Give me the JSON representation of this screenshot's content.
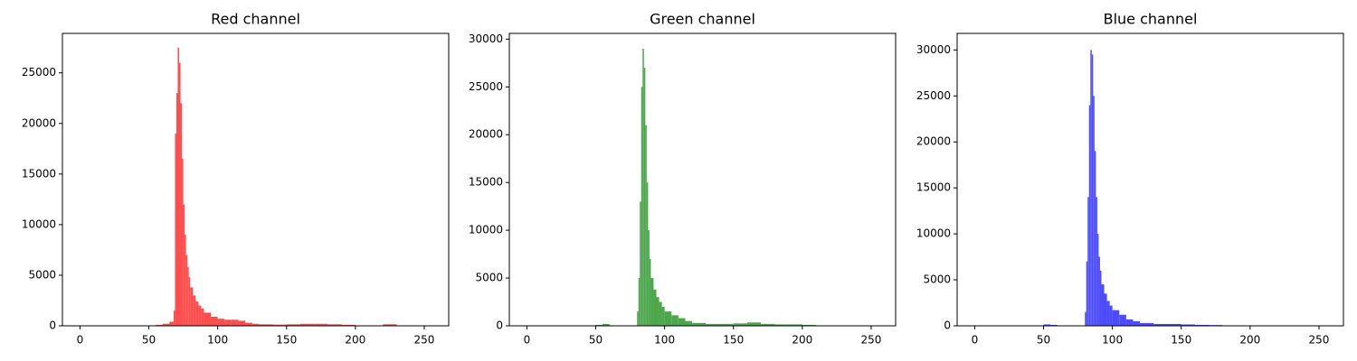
{
  "chart_data": [
    {
      "type": "histogram",
      "title": "Red channel",
      "color": "#ff4c4c",
      "bins": [
        55,
        60,
        65,
        68,
        69,
        70,
        71,
        72,
        73,
        74,
        75,
        76,
        77,
        78,
        79,
        80,
        82,
        84,
        86,
        88,
        90,
        95,
        100,
        105,
        110,
        115,
        120,
        125,
        130,
        140,
        150,
        160,
        170,
        180,
        190,
        200,
        210,
        220,
        230
      ],
      "counts": [
        100,
        200,
        400,
        1500,
        19000,
        23000,
        27500,
        26000,
        22000,
        16500,
        12000,
        9000,
        7000,
        5800,
        4800,
        3800,
        3000,
        2400,
        2000,
        1700,
        1300,
        900,
        700,
        600,
        600,
        500,
        300,
        200,
        150,
        120,
        150,
        200,
        200,
        150,
        100,
        30,
        30,
        150
      ],
      "xlim": [
        -12.75,
        267.75
      ],
      "xticks": [
        0,
        50,
        100,
        150,
        200,
        250
      ],
      "ylim": [
        0,
        28900
      ],
      "yticks": [
        0,
        5000,
        10000,
        15000,
        20000,
        25000
      ]
    },
    {
      "type": "histogram",
      "title": "Green channel",
      "color": "#4ca64c",
      "bins": [
        50,
        55,
        60,
        65,
        80,
        81,
        82,
        83,
        84,
        85,
        86,
        87,
        88,
        89,
        90,
        92,
        94,
        96,
        98,
        100,
        105,
        110,
        115,
        120,
        130,
        140,
        150,
        160,
        170,
        180,
        190,
        200,
        210
      ],
      "counts": [
        100,
        200,
        50,
        20,
        1500,
        5000,
        13000,
        25000,
        29000,
        27000,
        21000,
        15000,
        10000,
        7000,
        5000,
        3800,
        3000,
        2500,
        2000,
        1500,
        1100,
        800,
        500,
        300,
        200,
        200,
        250,
        350,
        200,
        150,
        150,
        100
      ],
      "xlim": [
        -12.75,
        267.75
      ],
      "xticks": [
        0,
        50,
        100,
        150,
        200,
        250
      ],
      "ylim": [
        0,
        30600
      ],
      "yticks": [
        0,
        5000,
        10000,
        15000,
        20000,
        25000,
        30000
      ]
    },
    {
      "type": "histogram",
      "title": "Blue channel",
      "color": "#4c4cff",
      "bins": [
        50,
        55,
        60,
        80,
        81,
        82,
        83,
        84,
        85,
        86,
        87,
        88,
        89,
        90,
        91,
        92,
        94,
        96,
        98,
        100,
        105,
        110,
        115,
        120,
        130,
        140,
        150,
        160,
        170,
        180
      ],
      "counts": [
        150,
        100,
        20,
        1500,
        7000,
        14000,
        24000,
        30000,
        29500,
        25000,
        19000,
        14000,
        10000,
        7500,
        6000,
        4500,
        3500,
        2700,
        2200,
        1700,
        1200,
        700,
        500,
        300,
        200,
        200,
        150,
        100,
        80
      ],
      "xlim": [
        -12.75,
        267.75
      ],
      "xticks": [
        0,
        50,
        100,
        150,
        200,
        250
      ],
      "ylim": [
        0,
        31800
      ],
      "yticks": [
        0,
        5000,
        10000,
        15000,
        20000,
        25000,
        30000
      ]
    }
  ]
}
